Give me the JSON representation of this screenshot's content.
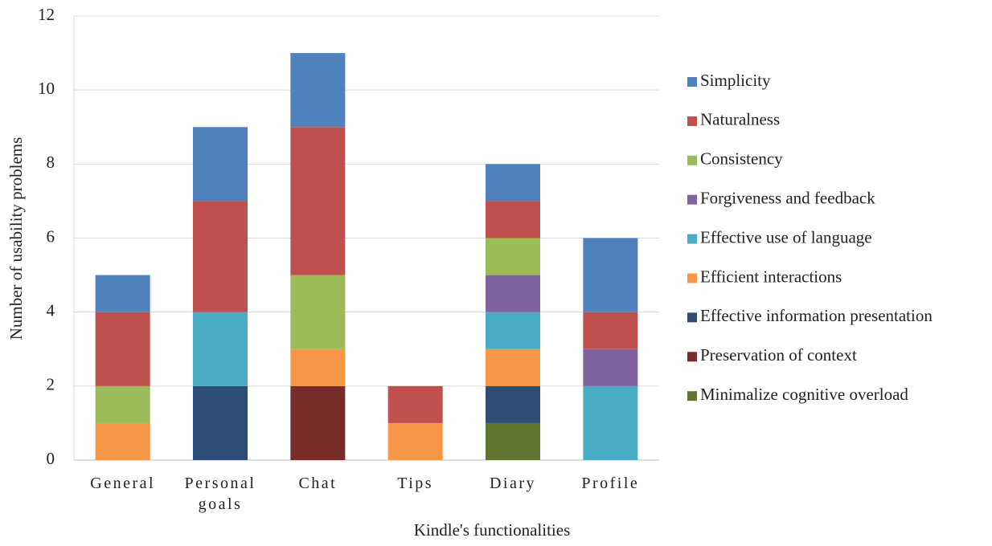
{
  "chart_data": {
    "type": "stacked_bar",
    "categories": [
      "General",
      "Personal goals",
      "Chat",
      "Tips",
      "Diary",
      "Profile"
    ],
    "series": [
      {
        "name": "Simplicity",
        "color": "#4f81bd",
        "values": [
          1,
          2,
          2,
          0,
          1,
          2
        ]
      },
      {
        "name": "Naturalness",
        "color": "#c0504d",
        "values": [
          2,
          3,
          4,
          1,
          1,
          1
        ]
      },
      {
        "name": "Consistency",
        "color": "#9bbb59",
        "values": [
          1,
          0,
          2,
          0,
          1,
          0
        ]
      },
      {
        "name": "Forgiveness and feedback",
        "color": "#8064a2",
        "values": [
          0,
          0,
          0,
          0,
          1,
          1
        ]
      },
      {
        "name": "Effective use of language",
        "color": "#4bacc6",
        "values": [
          0,
          2,
          0,
          0,
          1,
          2
        ]
      },
      {
        "name": "Efficient interactions",
        "color": "#f79646",
        "values": [
          1,
          0,
          1,
          1,
          1,
          0
        ]
      },
      {
        "name": "Effective information presentation",
        "color": "#2c4d75",
        "values": [
          0,
          2,
          0,
          0,
          1,
          0
        ]
      },
      {
        "name": "Preservation of context",
        "color": "#772c2a",
        "values": [
          0,
          0,
          2,
          0,
          0,
          0
        ]
      },
      {
        "name": "Minimalize cognitive overload",
        "color": "#5f7530",
        "values": [
          0,
          0,
          0,
          0,
          1,
          0
        ]
      }
    ],
    "x_label": "Kindle's functionalities",
    "y_label": "Number of usability problems",
    "ylim": [
      0,
      12
    ],
    "yticks": [
      0,
      2,
      4,
      6,
      8,
      10,
      12
    ],
    "grid": true,
    "legend": "right"
  }
}
